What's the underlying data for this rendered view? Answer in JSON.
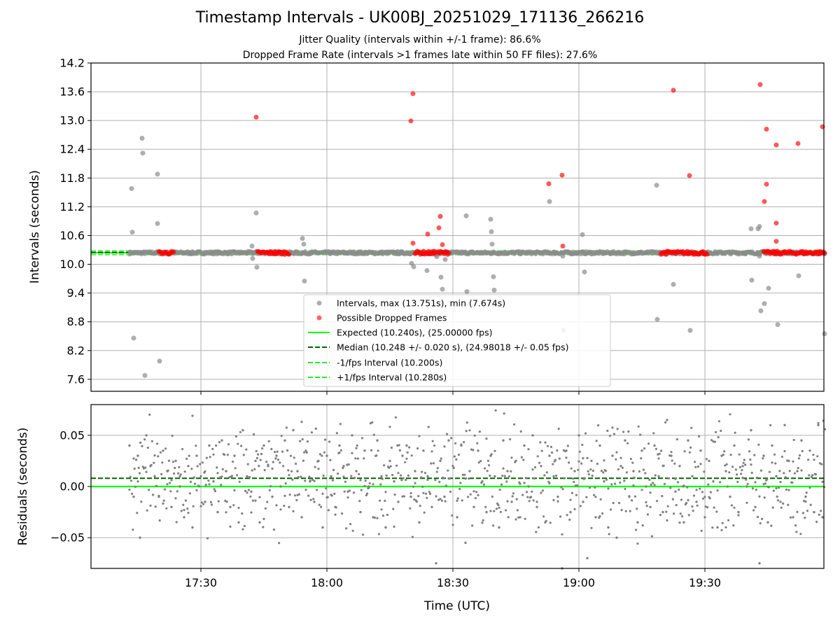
{
  "chart_data": [
    {
      "type": "scatter",
      "title": "Timestamp Intervals - UK00BJ_20251029_171136_266216",
      "subtitle_lines": [
        "Jitter Quality (intervals within +/-1 frame): 86.6%",
        "Dropped Frame Rate (intervals >1 frames late within 50 FF files): 27.6%"
      ],
      "ylabel": "Intervals (seconds)",
      "ylim": [
        7.35,
        14.2
      ],
      "yticks": [
        "14.2",
        "13.6",
        "13.0",
        "12.4",
        "11.8",
        "11.2",
        "10.6",
        "10.0",
        "9.4",
        "8.8",
        "8.2",
        "7.6"
      ],
      "xlim_minutes_labels": [
        "17:30",
        "18:00",
        "18:30",
        "19:00",
        "19:30"
      ],
      "grid": true,
      "legend_position": "lower-center",
      "legend": [
        "Intervals, max (13.751s), min (7.674s)",
        "Possible Dropped Frames",
        "Expected (10.240s), (25.00000 fps)",
        "Median (10.248 +/- 0.020 s), (24.98018 +/- 0.05 fps)",
        "-1/fps Interval (10.200s)",
        "+1/fps Interval (10.280s)"
      ],
      "reference_lines": {
        "expected": 10.24,
        "median": 10.248,
        "minus_one_fps": 10.2,
        "plus_one_fps": 10.28
      },
      "series": [
        {
          "name": "Intervals, max (13.751s), min (7.674s)",
          "color": "#8c8c8c",
          "points_text": "17:13:30 11.58,17:13:40 10.67,17:14:00 8.46,17:16:00 12.63,17:16:10 12.32,17:16:40 7.68,17:19:40 11.88,17:19:40 10.85,17:20:10 7.98,17:42:10 10.38,17:42:20 10.12,17:43:10 11.07,17:43:20 9.94,17:54:10 10.54,17:54:30 10.42,17:54:40 9.65,18:20:10 10.02,18:20:40 9.95,18:23:50 9.87,18:26:10 10.16,18:27:10 9.73,18:27:30 9.48,18:28:10 10.10,18:33:10 11.01,18:33:20 9.43,18:39:00 10.94,18:39:10 10.68,18:39:20 10.42,18:39:40 9.74,18:39:50 9.46,18:53:00 11.31,18:56:10 10.17,18:56:20 8.62,19:00:50 10.62,19:01:20 9.84,19:18:30 11.65,19:18:40 8.85,19:22:30 9.58,19:26:30 8.62,19:41:00 10.74,19:41:10 9.67,19:42:40 10.74,19:43:00 10.17,19:43:00 10.79,19:43:20 9.03,19:44:10 9.18,19:45:10 9.50,19:47:20 8.74,19:52:20 9.76,19:58:30 8.55"
        },
        {
          "name": "Possible Dropped Frames",
          "color": "#ff0000",
          "points_text": "17:43:10 13.07,18:20:00 12.99,18:20:30 13.56,18:20:30 10.44,18:24:00 10.63,18:26:40 10.76,18:27:00 11.00,18:27:30 10.41,18:52:50 11.68,18:56:00 11.86,18:56:10 10.38,19:22:30 13.63,19:26:20 11.85,19:43:10 13.75,19:44:10 11.31,19:44:40 12.82,19:44:40 11.67,19:47:00 12.49,19:47:00 10.86,19:47:00 10.48,19:52:10 12.52,19:58:00 12.87"
        }
      ]
    },
    {
      "type": "scatter",
      "ylabel": "Residuals (seconds)",
      "xlabel": "Time (UTC)",
      "ylim": [
        -0.08,
        0.08
      ],
      "yticks": [
        "0.05",
        "0.00",
        "−0.05"
      ],
      "xticks": [
        "17:30",
        "18:00",
        "18:30",
        "19:00",
        "19:30"
      ],
      "grid": true,
      "reference_lines": {
        "zero": 0.0,
        "median_offset": 0.008
      },
      "series": [
        {
          "name": "Residuals",
          "color": "#808080",
          "points_text": "17:13:00 0.040,17:14:00 -0.010,17:15:00 0.030,17:15:30 -0.050,17:17:00 0.050,17:18:00 0.020,17:19:00 0.010,17:20:00 -0.010,17:21:00 0.035,17:22:00 0.015,17:23:00 -0.020,17:24:00 0.025,17:25:00 0.000,17:26:00 -0.030,17:27:00 0.020,17:28:00 -0.040,17:29:00 0.030,17:30:00 0.010,17:31:00 -0.015,17:32:00 0.040,17:33:00 0.005,17:34:00 -0.025,17:35:00 0.045,17:36:00 0.015,17:37:00 -0.020,17:38:00 0.030,17:39:00 -0.035,17:40:00 0.055,17:41:00 0.010,17:42:00 -0.005,17:43:00 0.025,17:44:00 -0.035,17:45:00 0.040,17:46:00 0.020,17:47:00 -0.010,17:48:00 0.030,17:49:00 0.000,17:50:00 0.045,17:51:00 -0.020,17:52:00 0.055,17:53:00 0.015,17:54:00 -0.030,17:55:00 0.035,17:56:00 0.005,17:57:00 -0.015,17:58:00 0.025,17:59:00 -0.040,18:00:00 0.030,18:01:00 0.010,18:02:00 -0.020,18:03:00 0.040,18:04:00 0.020,18:05:00 -0.005,18:06:00 0.050,18:07:00 0.015,18:08:00 -0.025,18:09:00 0.035,18:10:00 0.000,18:11:00 -0.030,18:12:00 0.045,18:13:00 0.010,18:14:00 -0.040,18:15:00 0.025,18:16:00 0.005,18:17:00 -0.015,18:18:00 0.030,18:19:00 0.040,18:20:00 -0.010,18:21:00 0.015,18:22:00 -0.035,18:23:00 0.035,18:24:00 0.010,18:25:00 -0.020,18:26:00 -0.075,18:27:00 0.025,18:28:00 -0.010,18:29:00 0.045,18:30:00 0.020,18:31:00 -0.030,18:32:00 0.040,18:33:00 -0.055,18:34:00 0.015,18:35:00 -0.020,18:36:00 0.035,18:37:00 0.005,18:38:00 -0.025,18:39:00 0.030,18:40:00 0.010,18:41:00 -0.040,18:42:00 0.045,18:43:00 0.015,18:44:00 -0.015,18:45:00 0.025,18:46:00 -0.030,18:47:00 0.040,18:48:00 0.000,18:49:00 0.050,18:50:00 -0.020,18:51:00 0.020,18:52:00 -0.035,18:53:00 0.030,18:54:00 0.010,18:55:00 -0.010,18:56:00 -0.080,18:57:00 0.035,18:58:00 -0.025,18:59:00 0.015,19:00:00 0.050,19:01:00 -0.015,19:02:00 -0.070,19:03:00 0.025,19:04:00 -0.030,19:05:00 0.040,19:06:00 0.005,19:07:00 -0.040,19:08:00 0.030,19:09:00 -0.050,19:10:00 0.020,19:11:00 0.045,19:12:00 -0.010,19:13:00 0.015,19:14:00 -0.035,19:15:00 0.035,19:16:00 0.000,19:17:00 -0.020,19:18:00 0.040,19:19:00 0.010,19:20:00 -0.025,19:21:00 0.065,19:22:00 0.030,19:23:00 -0.005,19:24:00 0.020,19:25:00 -0.035,19:26:00 0.045,19:27:00 0.010,19:28:00 -0.015,19:29:00 0.035,19:30:00 -0.030,19:31:00 0.025,19:32:00 0.005,19:33:00 -0.040,19:34:00 0.030,19:35:00 0.015,19:36:00 -0.010,19:37:00 0.040,19:38:00 -0.025,19:39:00 0.020,19:40:00 0.000,19:41:00 0.055,19:42:00 -0.020,19:43:00 -0.075,19:44:00 0.030,19:45:00 -0.035,19:46:00 0.040,19:47:00 0.010,19:48:00 -0.015,19:49:00 0.060,19:50:00 0.025,19:51:00 -0.030,19:52:00 0.015,19:53:00 0.045,19:54:00 -0.010,19:55:00 0.035,19:56:00 -0.025,19:57:00 0.060,19:58:00 -0.030"
        }
      ]
    }
  ]
}
